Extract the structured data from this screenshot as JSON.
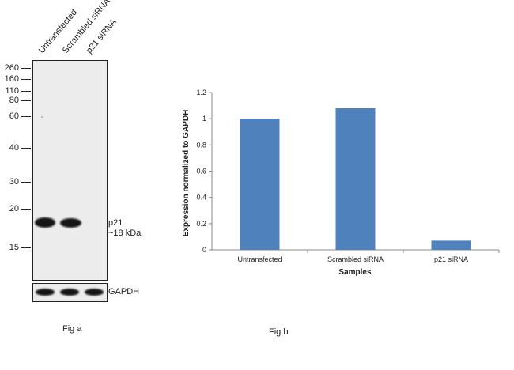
{
  "fig_a": {
    "caption": "Fig a",
    "lanes": [
      "Untransfected",
      "Scrambled siRNA",
      "p21 siRNA"
    ],
    "mw_markers": [
      "260",
      "160",
      "110",
      "80",
      "60",
      "40",
      "30",
      "20",
      "15"
    ],
    "band_label": "p21",
    "band_size": "~18 kDa",
    "loading_control": "GAPDH"
  },
  "fig_b": {
    "caption": "Fig b"
  },
  "chart_data": {
    "type": "bar",
    "categories": [
      "Untransfected",
      "Scrambled siRNA",
      "p21 siRNA"
    ],
    "values": [
      1.0,
      1.08,
      0.07
    ],
    "xlabel": "Samples",
    "ylabel": "Expression normalized to GAPDH",
    "ylim": [
      0,
      1.2
    ],
    "yticks": [
      "0",
      "0.2",
      "0.4",
      "0.6",
      "0.8",
      "1",
      "1.2"
    ],
    "bar_color": "#4f81bd",
    "grid": false,
    "legend": "none"
  }
}
